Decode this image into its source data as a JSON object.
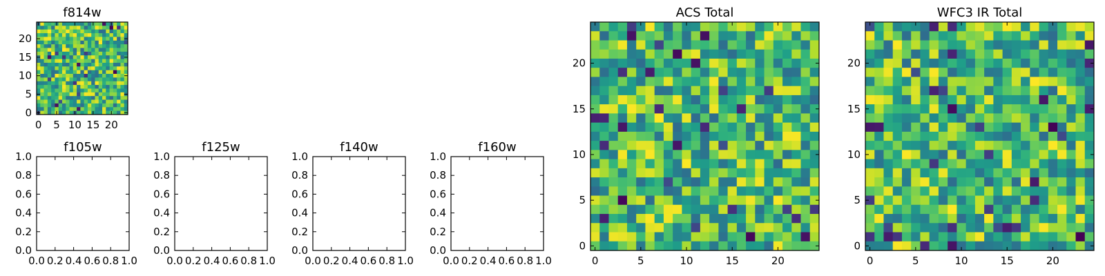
{
  "chart_data": [
    {
      "id": "f814w",
      "type": "heatmap",
      "title": "f814w",
      "grid_size": 25,
      "xlim": [
        -0.5,
        24.5
      ],
      "ylim": [
        -0.5,
        24.5
      ],
      "xticks": [
        0,
        5,
        10,
        15,
        20
      ],
      "xtick_labels": [
        "0",
        "5",
        "10",
        "15",
        "20"
      ],
      "yticks": [
        0,
        5,
        10,
        15,
        20
      ],
      "ytick_labels": [
        "0",
        "5",
        "10",
        "15",
        "20"
      ],
      "colormap": "viridis",
      "values": "noise field (per-pixel values not legible)",
      "seed": 7
    },
    {
      "id": "f105w",
      "type": "empty",
      "title": "f105w",
      "xlim": [
        0,
        1
      ],
      "ylim": [
        0,
        1
      ],
      "xticks": [
        0,
        0.2,
        0.4,
        0.6,
        0.8,
        1.0
      ],
      "xtick_labels": [
        "0.0",
        "0.2",
        "0.4",
        "0.6",
        "0.8",
        "1.0"
      ],
      "yticks": [
        0,
        0.2,
        0.4,
        0.6,
        0.8,
        1.0
      ],
      "ytick_labels": [
        "0.0",
        "0.2",
        "0.4",
        "0.6",
        "0.8",
        "1.0"
      ]
    },
    {
      "id": "f125w",
      "type": "empty",
      "title": "f125w",
      "xlim": [
        0,
        1
      ],
      "ylim": [
        0,
        1
      ],
      "xticks": [
        0,
        0.2,
        0.4,
        0.6,
        0.8,
        1.0
      ],
      "xtick_labels": [
        "0.0",
        "0.2",
        "0.4",
        "0.6",
        "0.8",
        "1.0"
      ],
      "yticks": [
        0,
        0.2,
        0.4,
        0.6,
        0.8,
        1.0
      ],
      "ytick_labels": [
        "0.0",
        "0.2",
        "0.4",
        "0.6",
        "0.8",
        "1.0"
      ]
    },
    {
      "id": "f140w",
      "type": "empty",
      "title": "f140w",
      "xlim": [
        0,
        1
      ],
      "ylim": [
        0,
        1
      ],
      "xticks": [
        0,
        0.2,
        0.4,
        0.6,
        0.8,
        1.0
      ],
      "xtick_labels": [
        "0.0",
        "0.2",
        "0.4",
        "0.6",
        "0.8",
        "1.0"
      ],
      "yticks": [
        0,
        0.2,
        0.4,
        0.6,
        0.8,
        1.0
      ],
      "ytick_labels": [
        "0.0",
        "0.2",
        "0.4",
        "0.6",
        "0.8",
        "1.0"
      ]
    },
    {
      "id": "f160w",
      "type": "empty",
      "title": "f160w",
      "xlim": [
        0,
        1
      ],
      "ylim": [
        0,
        1
      ],
      "xticks": [
        0,
        0.2,
        0.4,
        0.6,
        0.8,
        1.0
      ],
      "xtick_labels": [
        "0.0",
        "0.2",
        "0.4",
        "0.6",
        "0.8",
        "1.0"
      ],
      "yticks": [
        0,
        0.2,
        0.4,
        0.6,
        0.8,
        1.0
      ],
      "ytick_labels": [
        "0.0",
        "0.2",
        "0.4",
        "0.6",
        "0.8",
        "1.0"
      ]
    },
    {
      "id": "acs-total",
      "type": "heatmap",
      "title": "ACS Total",
      "grid_size": 25,
      "xlim": [
        -0.5,
        24.5
      ],
      "ylim": [
        -0.5,
        24.5
      ],
      "xticks": [
        0,
        5,
        10,
        15,
        20
      ],
      "xtick_labels": [
        "0",
        "5",
        "10",
        "15",
        "20"
      ],
      "yticks": [
        0,
        5,
        10,
        15,
        20
      ],
      "ytick_labels": [
        "0",
        "5",
        "10",
        "15",
        "20"
      ],
      "colormap": "viridis",
      "values": "noise field (per-pixel values not legible)",
      "seed": 23
    },
    {
      "id": "wfc3-ir-total",
      "type": "heatmap",
      "title": "WFC3 IR Total",
      "grid_size": 25,
      "xlim": [
        -0.5,
        24.5
      ],
      "ylim": [
        -0.5,
        24.5
      ],
      "xticks": [
        0,
        5,
        10,
        15,
        20
      ],
      "xtick_labels": [
        "0",
        "5",
        "10",
        "15",
        "20"
      ],
      "yticks": [
        0,
        5,
        10,
        15,
        20
      ],
      "ytick_labels": [
        "0",
        "5",
        "10",
        "15",
        "20"
      ],
      "colormap": "viridis",
      "values": "noise field (per-pixel values not legible)",
      "seed": 91
    }
  ]
}
